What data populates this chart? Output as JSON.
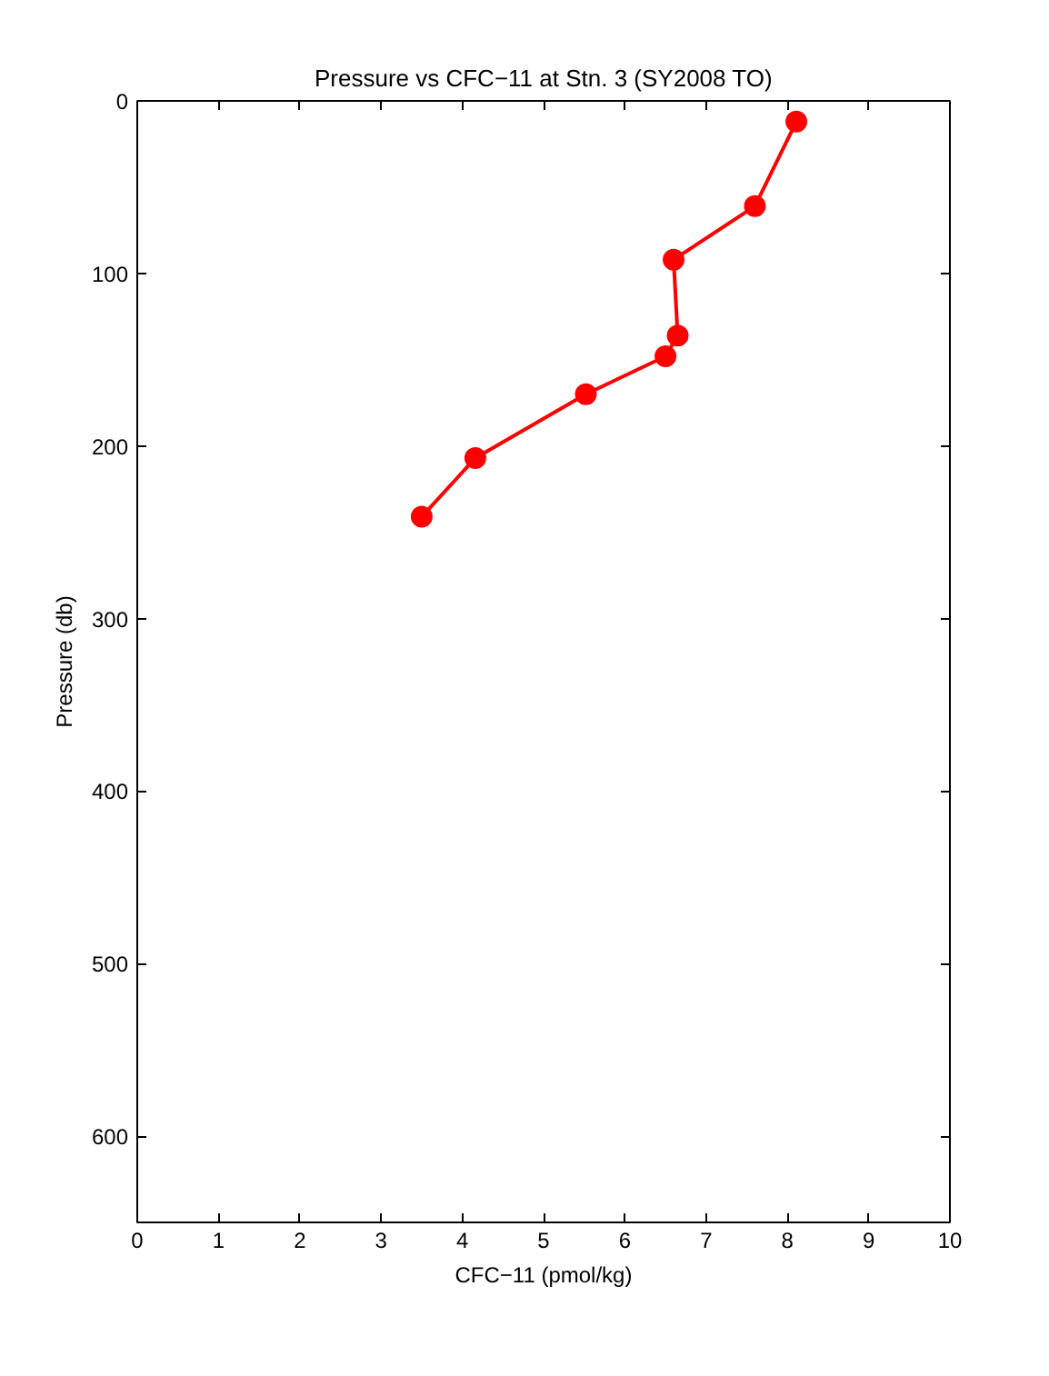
{
  "chart_data": {
    "type": "line",
    "title": "Pressure vs CFC−11 at Stn. 3 (SY2008 TO)",
    "xlabel": "CFC−11 (pmol/kg)",
    "ylabel": "Pressure (db)",
    "series": [
      {
        "color": "#ff0000",
        "x": [
          8.11,
          7.6,
          6.6,
          6.65,
          6.5,
          5.52,
          4.16,
          3.5
        ],
        "values": [
          12,
          61,
          92,
          136,
          148,
          170,
          207,
          241
        ]
      }
    ],
    "xlim": [
      0,
      10
    ],
    "xticks": [
      0,
      1,
      2,
      3,
      4,
      5,
      6,
      7,
      8,
      9,
      10
    ],
    "ylim": [
      650,
      0
    ],
    "yticks": [
      0,
      100,
      200,
      300,
      400,
      500,
      600
    ],
    "marker": "circle",
    "line_style": "solid",
    "grid": false
  }
}
